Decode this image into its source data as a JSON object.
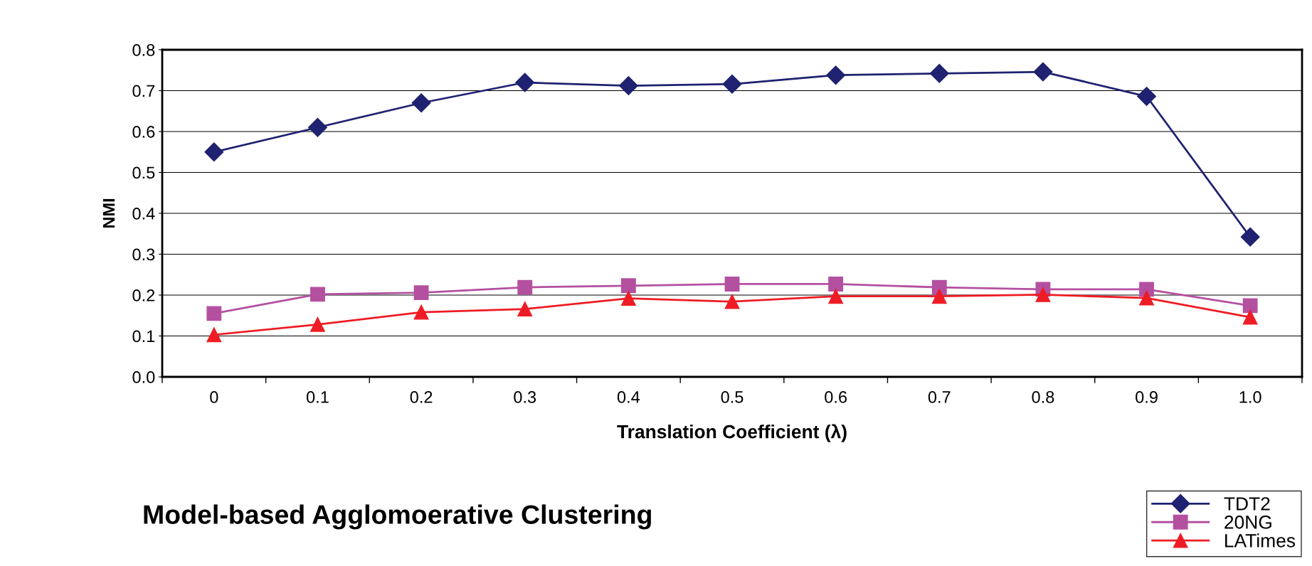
{
  "chart_data": {
    "type": "line",
    "title": "Model-based Agglomoerative Clustering",
    "xlabel": "Translation Coefficient (λ)",
    "ylabel": "NMI",
    "categories": [
      "0",
      "0.1",
      "0.2",
      "0.3",
      "0.4",
      "0.5",
      "0.6",
      "0.7",
      "0.8",
      "0.9",
      "1.0"
    ],
    "series": [
      {
        "name": "TDT2",
        "color": "#1f2270",
        "marker": "diamond",
        "values": [
          0.55,
          0.61,
          0.67,
          0.72,
          0.712,
          0.716,
          0.738,
          0.742,
          0.746,
          0.686,
          0.342
        ]
      },
      {
        "name": "20NG",
        "color": "#b450a0",
        "marker": "square",
        "values": [
          0.155,
          0.202,
          0.206,
          0.219,
          0.223,
          0.227,
          0.227,
          0.219,
          0.214,
          0.214,
          0.174
        ]
      },
      {
        "name": "LATimes",
        "color": "#ee1c24",
        "marker": "triangle",
        "values": [
          0.103,
          0.128,
          0.158,
          0.166,
          0.192,
          0.184,
          0.197,
          0.197,
          0.201,
          0.193,
          0.146
        ]
      }
    ],
    "ylim": [
      0,
      0.8
    ],
    "yticks": [
      {
        "value": 0,
        "label": "0.0"
      },
      0.1,
      0.2,
      0.3,
      0.4,
      0.5,
      0.6,
      0.7,
      0.8
    ],
    "grid": "y",
    "legend": "bottom right",
    "line_style": "solid"
  }
}
